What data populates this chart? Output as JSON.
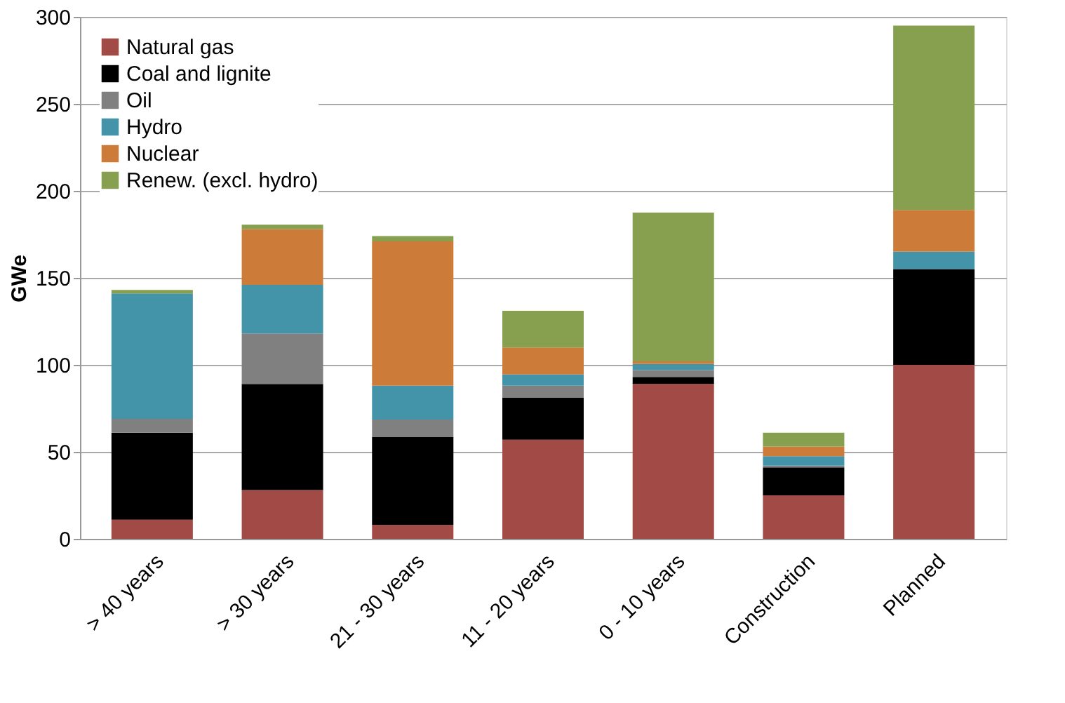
{
  "chart_data": {
    "type": "bar",
    "stacked": true,
    "ylabel": "GWe",
    "categories": [
      "> 40 years",
      "> 30 years",
      "21 - 30 years",
      "11 - 20 years",
      "0 - 10 years",
      "Construction",
      "Planned"
    ],
    "series": [
      {
        "name": "Natural gas",
        "color": "#a24a46",
        "values": [
          11,
          28,
          8,
          57,
          89,
          25,
          100
        ]
      },
      {
        "name": "Coal and lignite",
        "color": "#000000",
        "values": [
          50,
          61,
          50.5,
          24,
          4,
          16,
          55
        ]
      },
      {
        "name": "Oil",
        "color": "#808080",
        "values": [
          8,
          29,
          10,
          7,
          4,
          1,
          0
        ]
      },
      {
        "name": "Hydro",
        "color": "#4393a9",
        "values": [
          72,
          28,
          19.5,
          6.5,
          3.5,
          5.5,
          10
        ]
      },
      {
        "name": "Nuclear",
        "color": "#cc7b38",
        "values": [
          0,
          32,
          83,
          15.5,
          1.5,
          5.5,
          24
        ]
      },
      {
        "name": "Renew. (excl. hydro)",
        "color": "#86a04f",
        "values": [
          2,
          2.5,
          3,
          21,
          85.5,
          8,
          106
        ]
      }
    ],
    "ylim": [
      0,
      300
    ],
    "yticks": [
      0,
      50,
      100,
      150,
      200,
      250,
      300
    ],
    "grid": "y",
    "legend": "top left"
  }
}
